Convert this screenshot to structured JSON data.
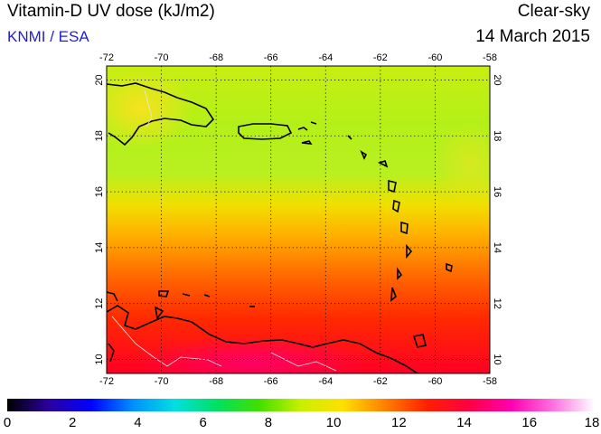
{
  "header": {
    "title": "Vitamin-D UV dose (kJ/m2)",
    "organization": "KNMI / ESA",
    "sky_condition": "Clear-sky",
    "date": "14 March 2015"
  },
  "map": {
    "lon_range": [
      -72,
      -58
    ],
    "lat_range": [
      9.5,
      20.5
    ],
    "lon_ticks": [
      "-72",
      "-70",
      "-68",
      "-66",
      "-64",
      "-62",
      "-60",
      "-58"
    ],
    "lat_ticks": [
      "10",
      "12",
      "14",
      "16",
      "18",
      "20"
    ],
    "gridlines": "dotted"
  },
  "colorbar": {
    "min": 0,
    "max": 18,
    "labels": [
      "0",
      "2",
      "4",
      "6",
      "8",
      "10",
      "12",
      "14",
      "16",
      "18"
    ],
    "stops": [
      "#000000",
      "#2a00a0",
      "#0000ff",
      "#0090ff",
      "#00e0e0",
      "#00e060",
      "#40e000",
      "#c8f000",
      "#ffe000",
      "#ff8000",
      "#ff2000",
      "#ff0040",
      "#ff00b0",
      "#ff70e0",
      "#ffffff"
    ]
  }
}
